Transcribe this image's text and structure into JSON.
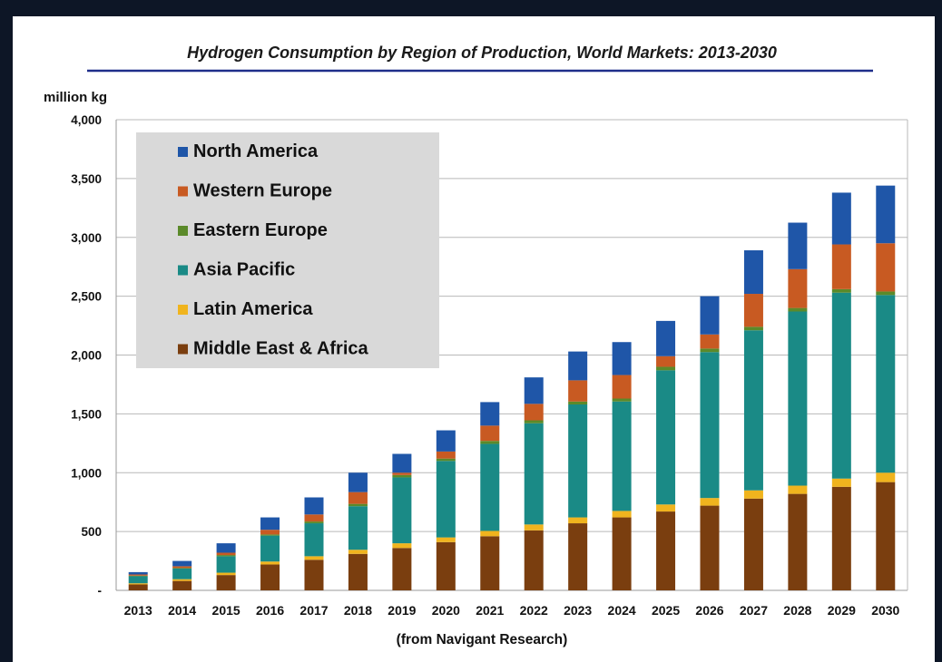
{
  "chart_data": {
    "type": "bar",
    "stacked": true,
    "title": "Hydrogen Consumption by Region of Production, World Markets: 2013-2030",
    "ylabel": "million kg",
    "source": "(from Navigant Research)",
    "ylim": [
      0,
      4000
    ],
    "yticks": [
      "-",
      "500",
      "1,000",
      "1,500",
      "2,000",
      "2,500",
      "3,000",
      "3,500",
      "4,000"
    ],
    "ytick_values": [
      0,
      500,
      1000,
      1500,
      2000,
      2500,
      3000,
      3500,
      4000
    ],
    "grid": true,
    "legend_position": "top-left",
    "categories": [
      "2013",
      "2014",
      "2015",
      "2016",
      "2017",
      "2018",
      "2019",
      "2020",
      "2021",
      "2022",
      "2023",
      "2024",
      "2025",
      "2026",
      "2027",
      "2028",
      "2029",
      "2030"
    ],
    "series": [
      {
        "name": "Middle East & Africa",
        "color": "#7a3e0f",
        "values": [
          50,
          80,
          130,
          220,
          260,
          310,
          360,
          410,
          460,
          510,
          570,
          620,
          670,
          720,
          780,
          820,
          880,
          920
        ]
      },
      {
        "name": "Latin America",
        "color": "#f0b41e",
        "values": [
          10,
          15,
          20,
          25,
          30,
          35,
          40,
          40,
          45,
          50,
          50,
          55,
          60,
          65,
          70,
          70,
          70,
          80
        ]
      },
      {
        "name": "Asia Pacific",
        "color": "#1a8a86",
        "values": [
          60,
          90,
          140,
          220,
          280,
          370,
          560,
          650,
          740,
          860,
          960,
          930,
          1140,
          1240,
          1360,
          1480,
          1580,
          1510
        ]
      },
      {
        "name": "Eastern Europe",
        "color": "#5b8a2a",
        "values": [
          5,
          5,
          10,
          10,
          15,
          20,
          20,
          20,
          25,
          25,
          25,
          25,
          30,
          30,
          30,
          30,
          30,
          30
        ]
      },
      {
        "name": "Western Europe",
        "color": "#c85a22",
        "values": [
          10,
          15,
          20,
          40,
          60,
          100,
          20,
          60,
          130,
          140,
          180,
          200,
          90,
          120,
          280,
          330,
          380,
          410
        ]
      },
      {
        "name": "North America",
        "color": "#1f56a8",
        "values": [
          20,
          45,
          80,
          105,
          145,
          165,
          160,
          180,
          200,
          225,
          245,
          280,
          300,
          325,
          370,
          395,
          440,
          490
        ]
      }
    ],
    "legend_order": [
      "North America",
      "Western Europe",
      "Eastern Europe",
      "Asia Pacific",
      "Latin America",
      "Middle East & Africa"
    ]
  }
}
